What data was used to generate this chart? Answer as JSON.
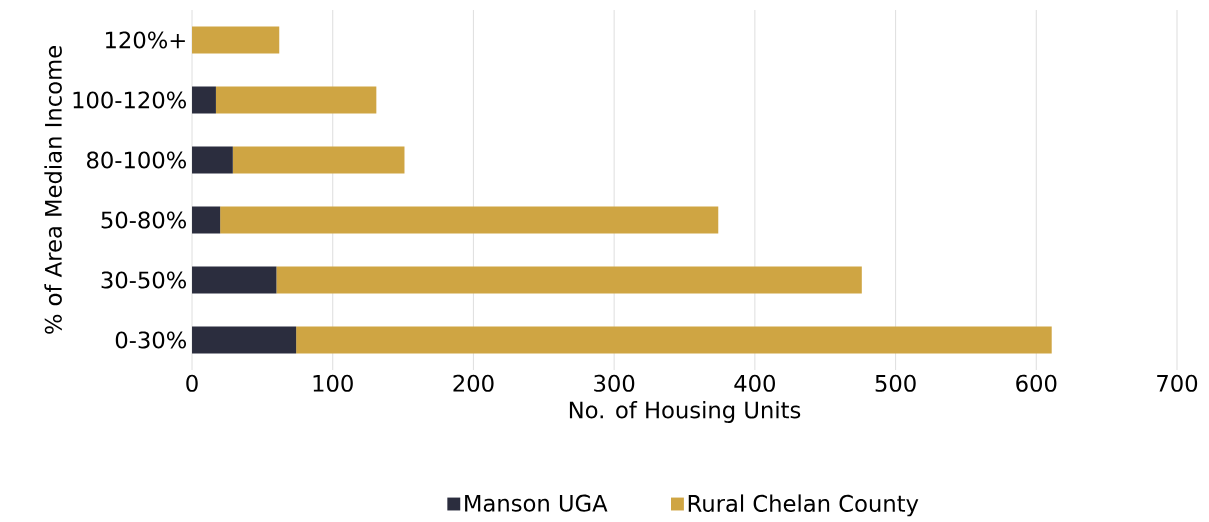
{
  "chart_data": {
    "type": "bar",
    "orientation": "horizontal",
    "stacked": true,
    "categories": [
      "120%+",
      "100-120%",
      "80-100%",
      "50-80%",
      "30-50%",
      "0-30%"
    ],
    "series": [
      {
        "name": "Manson UGA",
        "color": "#2b2d3e",
        "values": [
          0,
          17,
          29,
          20,
          60,
          74
        ]
      },
      {
        "name": "Rural Chelan County",
        "color": "#cfa543",
        "values": [
          62,
          114,
          122,
          354,
          416,
          537
        ]
      }
    ],
    "xlim": [
      0,
      700
    ],
    "xticks": [
      0,
      100,
      200,
      300,
      400,
      500,
      600,
      700
    ],
    "xlabel": "No. of Housing Units",
    "ylabel": "% of Area Median Income",
    "grid": "x",
    "legend": "bottom"
  }
}
